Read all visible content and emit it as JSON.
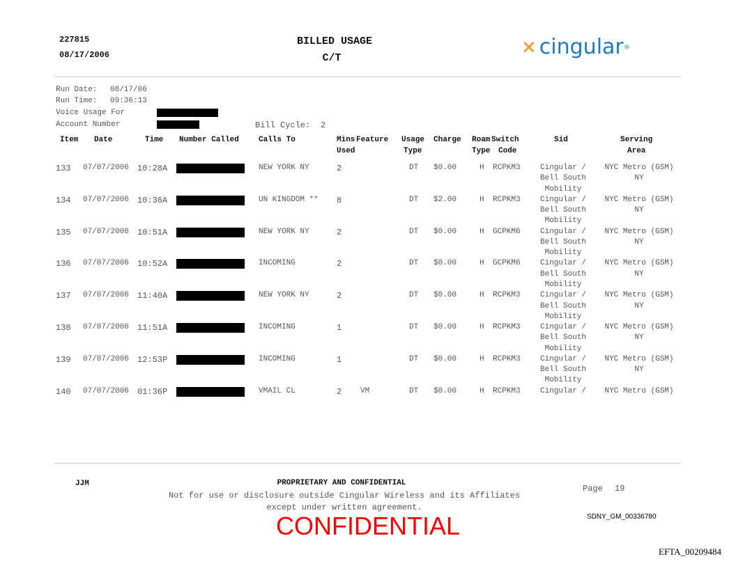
{
  "header": {
    "doc_id": "227815",
    "date": "08/17/2006",
    "title": "BILLED USAGE",
    "subtitle": "C/T",
    "logo_text": "cingular",
    "logo_colors": {
      "x": "#f7941d",
      "text": "#1a7bc4"
    }
  },
  "meta": {
    "run_date_label": "Run Date:",
    "run_date": "08/17/06",
    "run_time_label": "Run Time:",
    "run_time": "09:36:13",
    "voice_usage_label": "Voice Usage For",
    "account_label": "Account Number",
    "bill_cycle_label": "Bill Cycle:",
    "bill_cycle": "2"
  },
  "columns": {
    "item": "Item",
    "date": "Date",
    "time": "Time",
    "number_called": "Number Called",
    "calls_to": "Calls To",
    "mins": "Mins",
    "used": "Used",
    "feature": "Feature",
    "usage": "Usage",
    "usage_type": "Type",
    "charge": "Charge",
    "roam": "Roam",
    "roam_type": "Type",
    "switch": "Switch",
    "switch_code": "Code",
    "sid": "Sid",
    "serving": "Serving",
    "area": "Area"
  },
  "rows": [
    {
      "item": "133",
      "date": "07/07/2006",
      "time": "10:28A",
      "calls_to": "NEW YORK NY",
      "mins": "2",
      "feature": "",
      "usage_type": "DT",
      "charge": "$0.00",
      "roam": "H",
      "switch": "RCPKM3",
      "sid": [
        "Cingular /",
        "Bell South",
        "Mobility"
      ],
      "serving": [
        "NYC Metro (GSM)",
        "NY"
      ]
    },
    {
      "item": "134",
      "date": "07/07/2006",
      "time": "10:36A",
      "calls_to": "UN KINGDOM **",
      "mins": "8",
      "feature": "",
      "usage_type": "DT",
      "charge": "$2.00",
      "roam": "H",
      "switch": "RCPKM3",
      "sid": [
        "Cingular /",
        "Bell South",
        "Mobility"
      ],
      "serving": [
        "NYC Metro (GSM)",
        "NY"
      ]
    },
    {
      "item": "135",
      "date": "07/07/2006",
      "time": "10:51A",
      "calls_to": "NEW YORK NY",
      "mins": "2",
      "feature": "",
      "usage_type": "DT",
      "charge": "$0.00",
      "roam": "H",
      "switch": "GCPKM6",
      "sid": [
        "Cingular /",
        "Bell South",
        "Mobility"
      ],
      "serving": [
        "NYC Metro (GSM)",
        "NY"
      ]
    },
    {
      "item": "136",
      "date": "07/07/2006",
      "time": "10:52A",
      "calls_to": "INCOMING",
      "mins": "2",
      "feature": "",
      "usage_type": "DT",
      "charge": "$0.00",
      "roam": "H",
      "switch": "GCPKM6",
      "sid": [
        "Cingular /",
        "Bell South",
        "Mobility"
      ],
      "serving": [
        "NYC Metro (GSM)",
        "NY"
      ]
    },
    {
      "item": "137",
      "date": "07/07/2006",
      "time": "11:40A",
      "calls_to": "NEW YORK NY",
      "mins": "2",
      "feature": "",
      "usage_type": "DT",
      "charge": "$0.00",
      "roam": "H",
      "switch": "RCPKM3",
      "sid": [
        "Cingular /",
        "Bell South",
        "Mobility"
      ],
      "serving": [
        "NYC Metro (GSM)",
        "NY"
      ]
    },
    {
      "item": "138",
      "date": "07/07/2006",
      "time": "11:51A",
      "calls_to": "INCOMING",
      "mins": "1",
      "feature": "",
      "usage_type": "DT",
      "charge": "$0.00",
      "roam": "H",
      "switch": "RCPKM3",
      "sid": [
        "Cingular /",
        "Bell South",
        "Mobility"
      ],
      "serving": [
        "NYC Metro (GSM)",
        "NY"
      ]
    },
    {
      "item": "139",
      "date": "07/07/2006",
      "time": "12:53P",
      "calls_to": "INCOMING",
      "mins": "1",
      "feature": "",
      "usage_type": "DT",
      "charge": "$0.00",
      "roam": "H",
      "switch": "RCPKM3",
      "sid": [
        "Cingular /",
        "Bell South",
        "Mobility"
      ],
      "serving": [
        "NYC Metro (GSM)",
        "NY"
      ]
    },
    {
      "item": "140",
      "date": "07/07/2006",
      "time": "01:36P",
      "calls_to": "VMAIL CL",
      "mins": "2",
      "feature": "VM",
      "usage_type": "DT",
      "charge": "$0.00",
      "roam": "H",
      "switch": "RCPKM3",
      "sid": [
        "Cingular /"
      ],
      "serving": [
        "NYC Metro (GSM)"
      ]
    }
  ],
  "footer": {
    "initials": "JJM",
    "proprietary": "PROPRIETARY AND CONFIDENTIAL",
    "notice_line1": "Not for use or disclosure outside Cingular Wireless and its Affiliates",
    "notice_line2": "except under written agreement.",
    "confidential_stamp": "CONFIDENTIAL",
    "stamp_color": "#ff0000",
    "page_label": "Page",
    "page_number": "19",
    "bates": "SDNY_GM_00336780",
    "efta": "EFTA_00209484"
  }
}
